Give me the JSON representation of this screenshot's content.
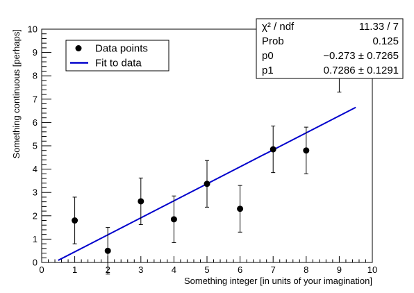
{
  "chart_data": {
    "type": "scatter",
    "xlabel": "Something integer [in units of your imagination]",
    "ylabel": "Something continuous [perhaps]",
    "xlim": [
      0,
      10
    ],
    "ylim": [
      0,
      10
    ],
    "x_ticks": [
      0,
      1,
      2,
      3,
      4,
      5,
      6,
      7,
      8,
      9,
      10
    ],
    "y_ticks": [
      0,
      1,
      2,
      3,
      4,
      5,
      6,
      7,
      8,
      9,
      10
    ],
    "grid": false,
    "legend": {
      "placement": "top-left",
      "entries": [
        {
          "label": "Data points",
          "marker": "circle"
        },
        {
          "label": "Fit to data",
          "marker": "line"
        }
      ]
    },
    "series": [
      {
        "name": "Data points",
        "type": "scatter",
        "color": "#000000",
        "x": [
          1,
          2,
          3,
          4,
          5,
          6,
          7,
          8,
          9
        ],
        "y": [
          1.8,
          0.5,
          2.62,
          1.85,
          3.37,
          2.3,
          4.85,
          4.8,
          8.3
        ],
        "y_err": [
          1.0,
          1.0,
          1.0,
          1.0,
          1.0,
          1.0,
          1.0,
          1.0,
          1.0
        ]
      },
      {
        "name": "Fit to data",
        "type": "line",
        "color": "#0000cc",
        "x": [
          0.5,
          9.5
        ],
        "y": [
          0.0913,
          6.649
        ]
      }
    ],
    "stats_box": {
      "placement": "top-right",
      "rows": [
        {
          "label": "χ² / ndf",
          "value": "11.33 / 7"
        },
        {
          "label": "Prob",
          "value": "0.125"
        },
        {
          "label": "p0",
          "value": "−0.273 ± 0.7265"
        },
        {
          "label": "p1",
          "value": "0.7286 ± 0.1291"
        }
      ]
    }
  }
}
